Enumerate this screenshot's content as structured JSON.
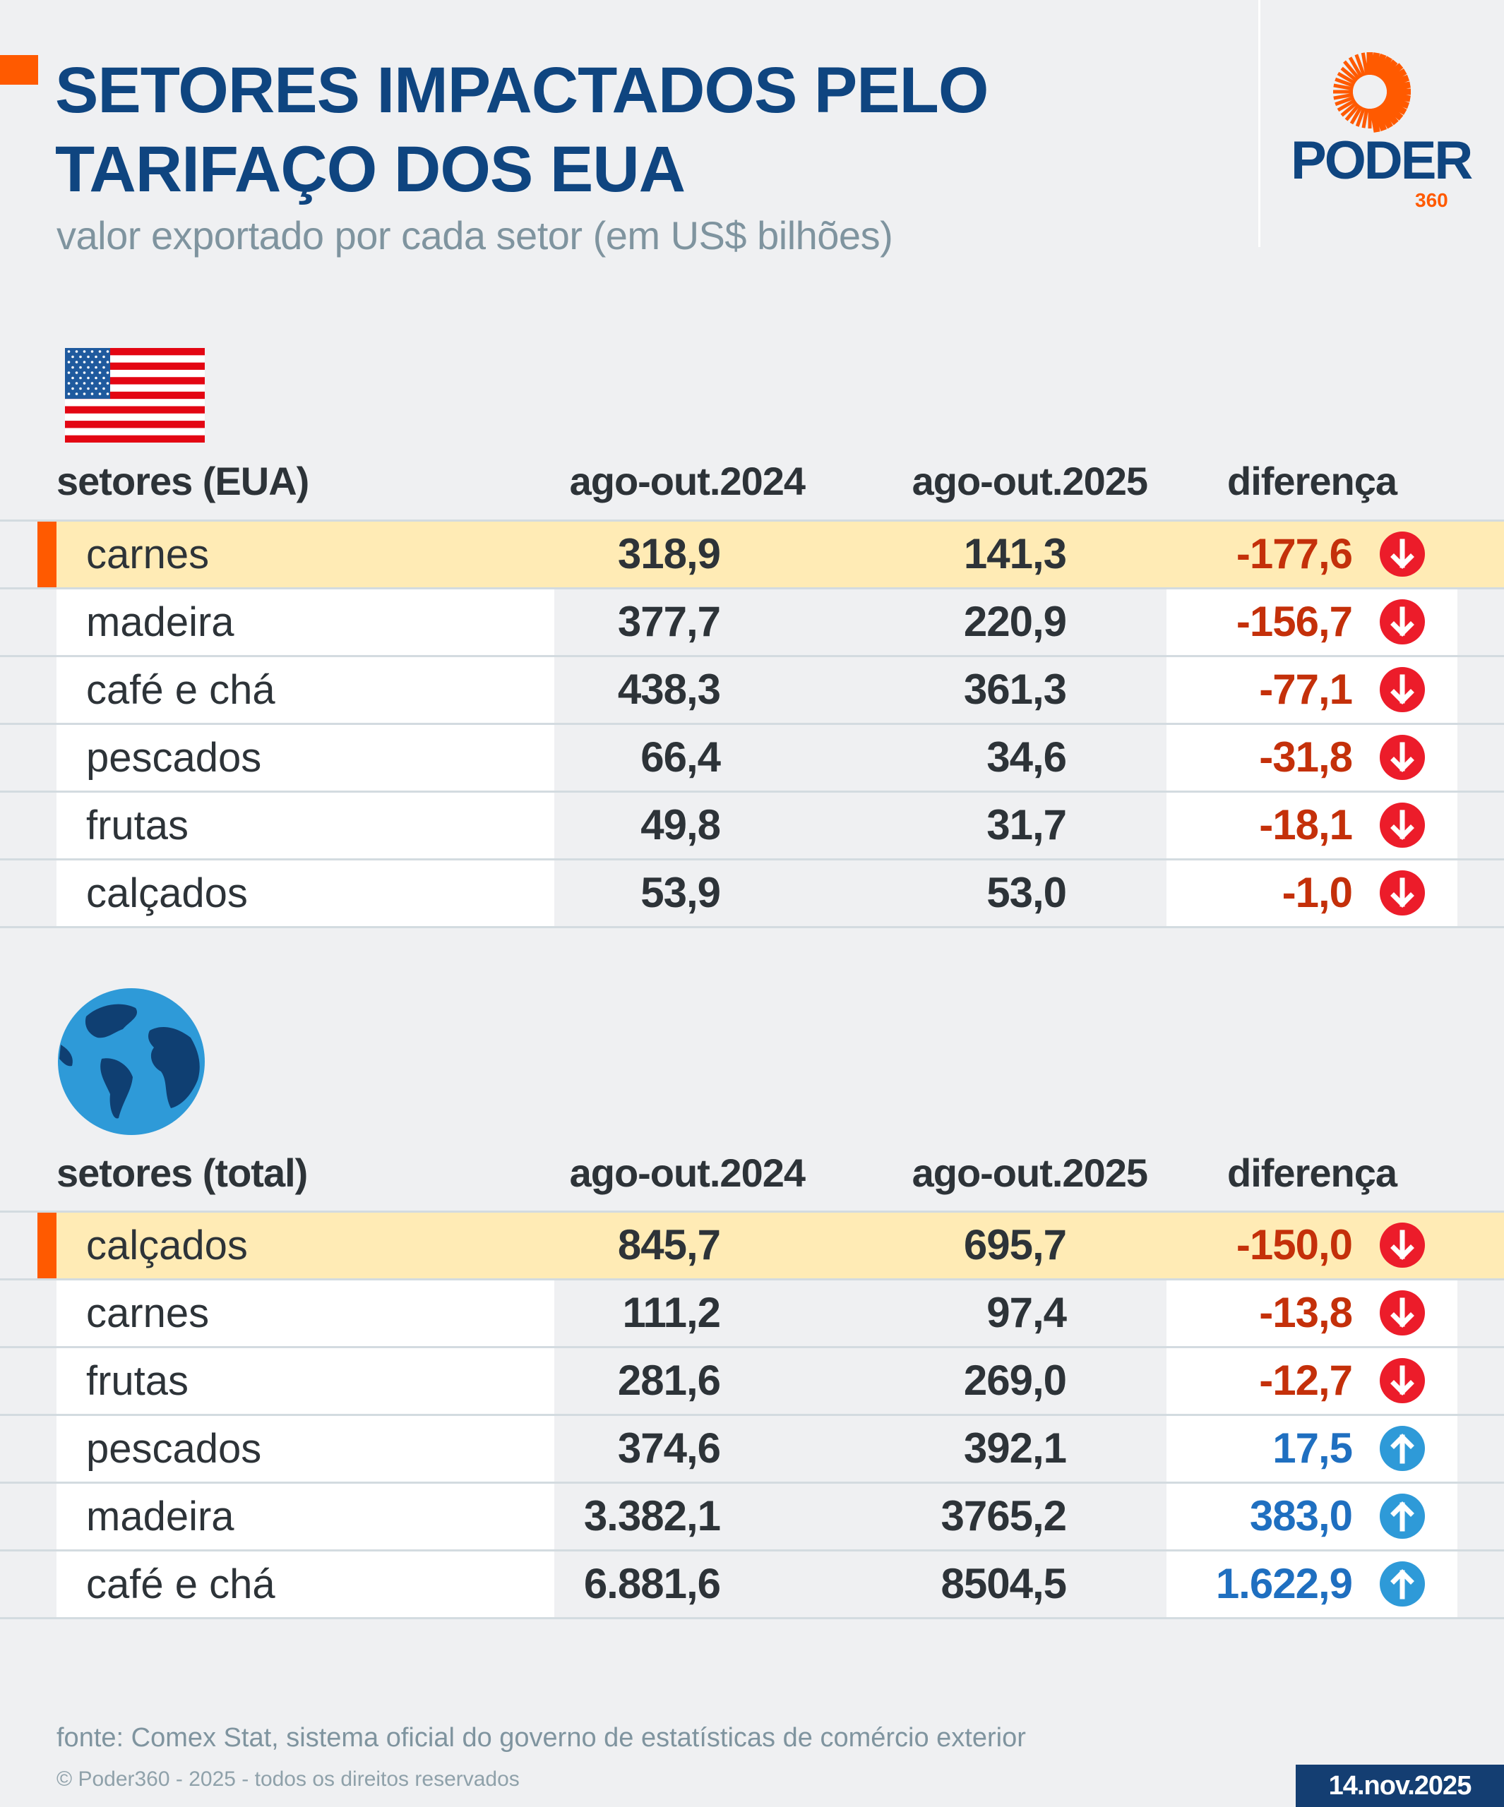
{
  "header": {
    "title_line1": "SETORES IMPACTADOS PELO",
    "title_line2": "TARIFAÇO DOS EUA",
    "subtitle": "valor exportado por cada setor (em US$ bilhões)"
  },
  "logo": {
    "text": "PODER",
    "number": "360"
  },
  "colors": {
    "accent": "#ff5a00",
    "title": "#0f4580",
    "highlight": "#ffebb5",
    "down": "#c4300a",
    "down_icon": "#ec1c2a",
    "up": "#1f6fc0",
    "up_icon": "#2e9ad8"
  },
  "tables": [
    {
      "icon": "us-flag-icon",
      "columns": [
        "setores (EUA)",
        "ago-out.2024",
        "ago-out.2025",
        "diferença"
      ],
      "rows": [
        {
          "name": "carnes",
          "v2024": "318,9",
          "v2025": "141,3",
          "diff": "-177,6",
          "direction": "down",
          "highlight": true
        },
        {
          "name": "madeira",
          "v2024": "377,7",
          "v2025": "220,9",
          "diff": "-156,7",
          "direction": "down"
        },
        {
          "name": "café e chá",
          "v2024": "438,3",
          "v2025": "361,3",
          "diff": "-77,1",
          "direction": "down"
        },
        {
          "name": "pescados",
          "v2024": "66,4",
          "v2025": "34,6",
          "diff": "-31,8",
          "direction": "down"
        },
        {
          "name": "frutas",
          "v2024": "49,8",
          "v2025": "31,7",
          "diff": "-18,1",
          "direction": "down"
        },
        {
          "name": "calçados",
          "v2024": "53,9",
          "v2025": "53,0",
          "diff": "-1,0",
          "direction": "down"
        }
      ]
    },
    {
      "icon": "globe-icon",
      "columns": [
        "setores (total)",
        "ago-out.2024",
        "ago-out.2025",
        "diferença"
      ],
      "rows": [
        {
          "name": "calçados",
          "v2024": "845,7",
          "v2025": "695,7",
          "diff": "-150,0",
          "direction": "down",
          "highlight": true
        },
        {
          "name": "carnes",
          "v2024": "111,2",
          "v2025": "97,4",
          "diff": "-13,8",
          "direction": "down"
        },
        {
          "name": "frutas",
          "v2024": "281,6",
          "v2025": "269,0",
          "diff": "-12,7",
          "direction": "down"
        },
        {
          "name": "pescados",
          "v2024": "374,6",
          "v2025": "392,1",
          "diff": "17,5",
          "direction": "up"
        },
        {
          "name": "madeira",
          "v2024": "3.382,1",
          "v2025": "3765,2",
          "diff": "383,0",
          "direction": "up"
        },
        {
          "name": "café e chá",
          "v2024": "6.881,6",
          "v2025": "8504,5",
          "diff": "1.622,9",
          "direction": "up"
        }
      ]
    }
  ],
  "footer": {
    "source": "fonte: Comex Stat, sistema oficial do governo de estatísticas de comércio exterior",
    "copyright": "© Poder360 - 2025 - todos os direitos reservados",
    "date": "14.nov.2025"
  }
}
